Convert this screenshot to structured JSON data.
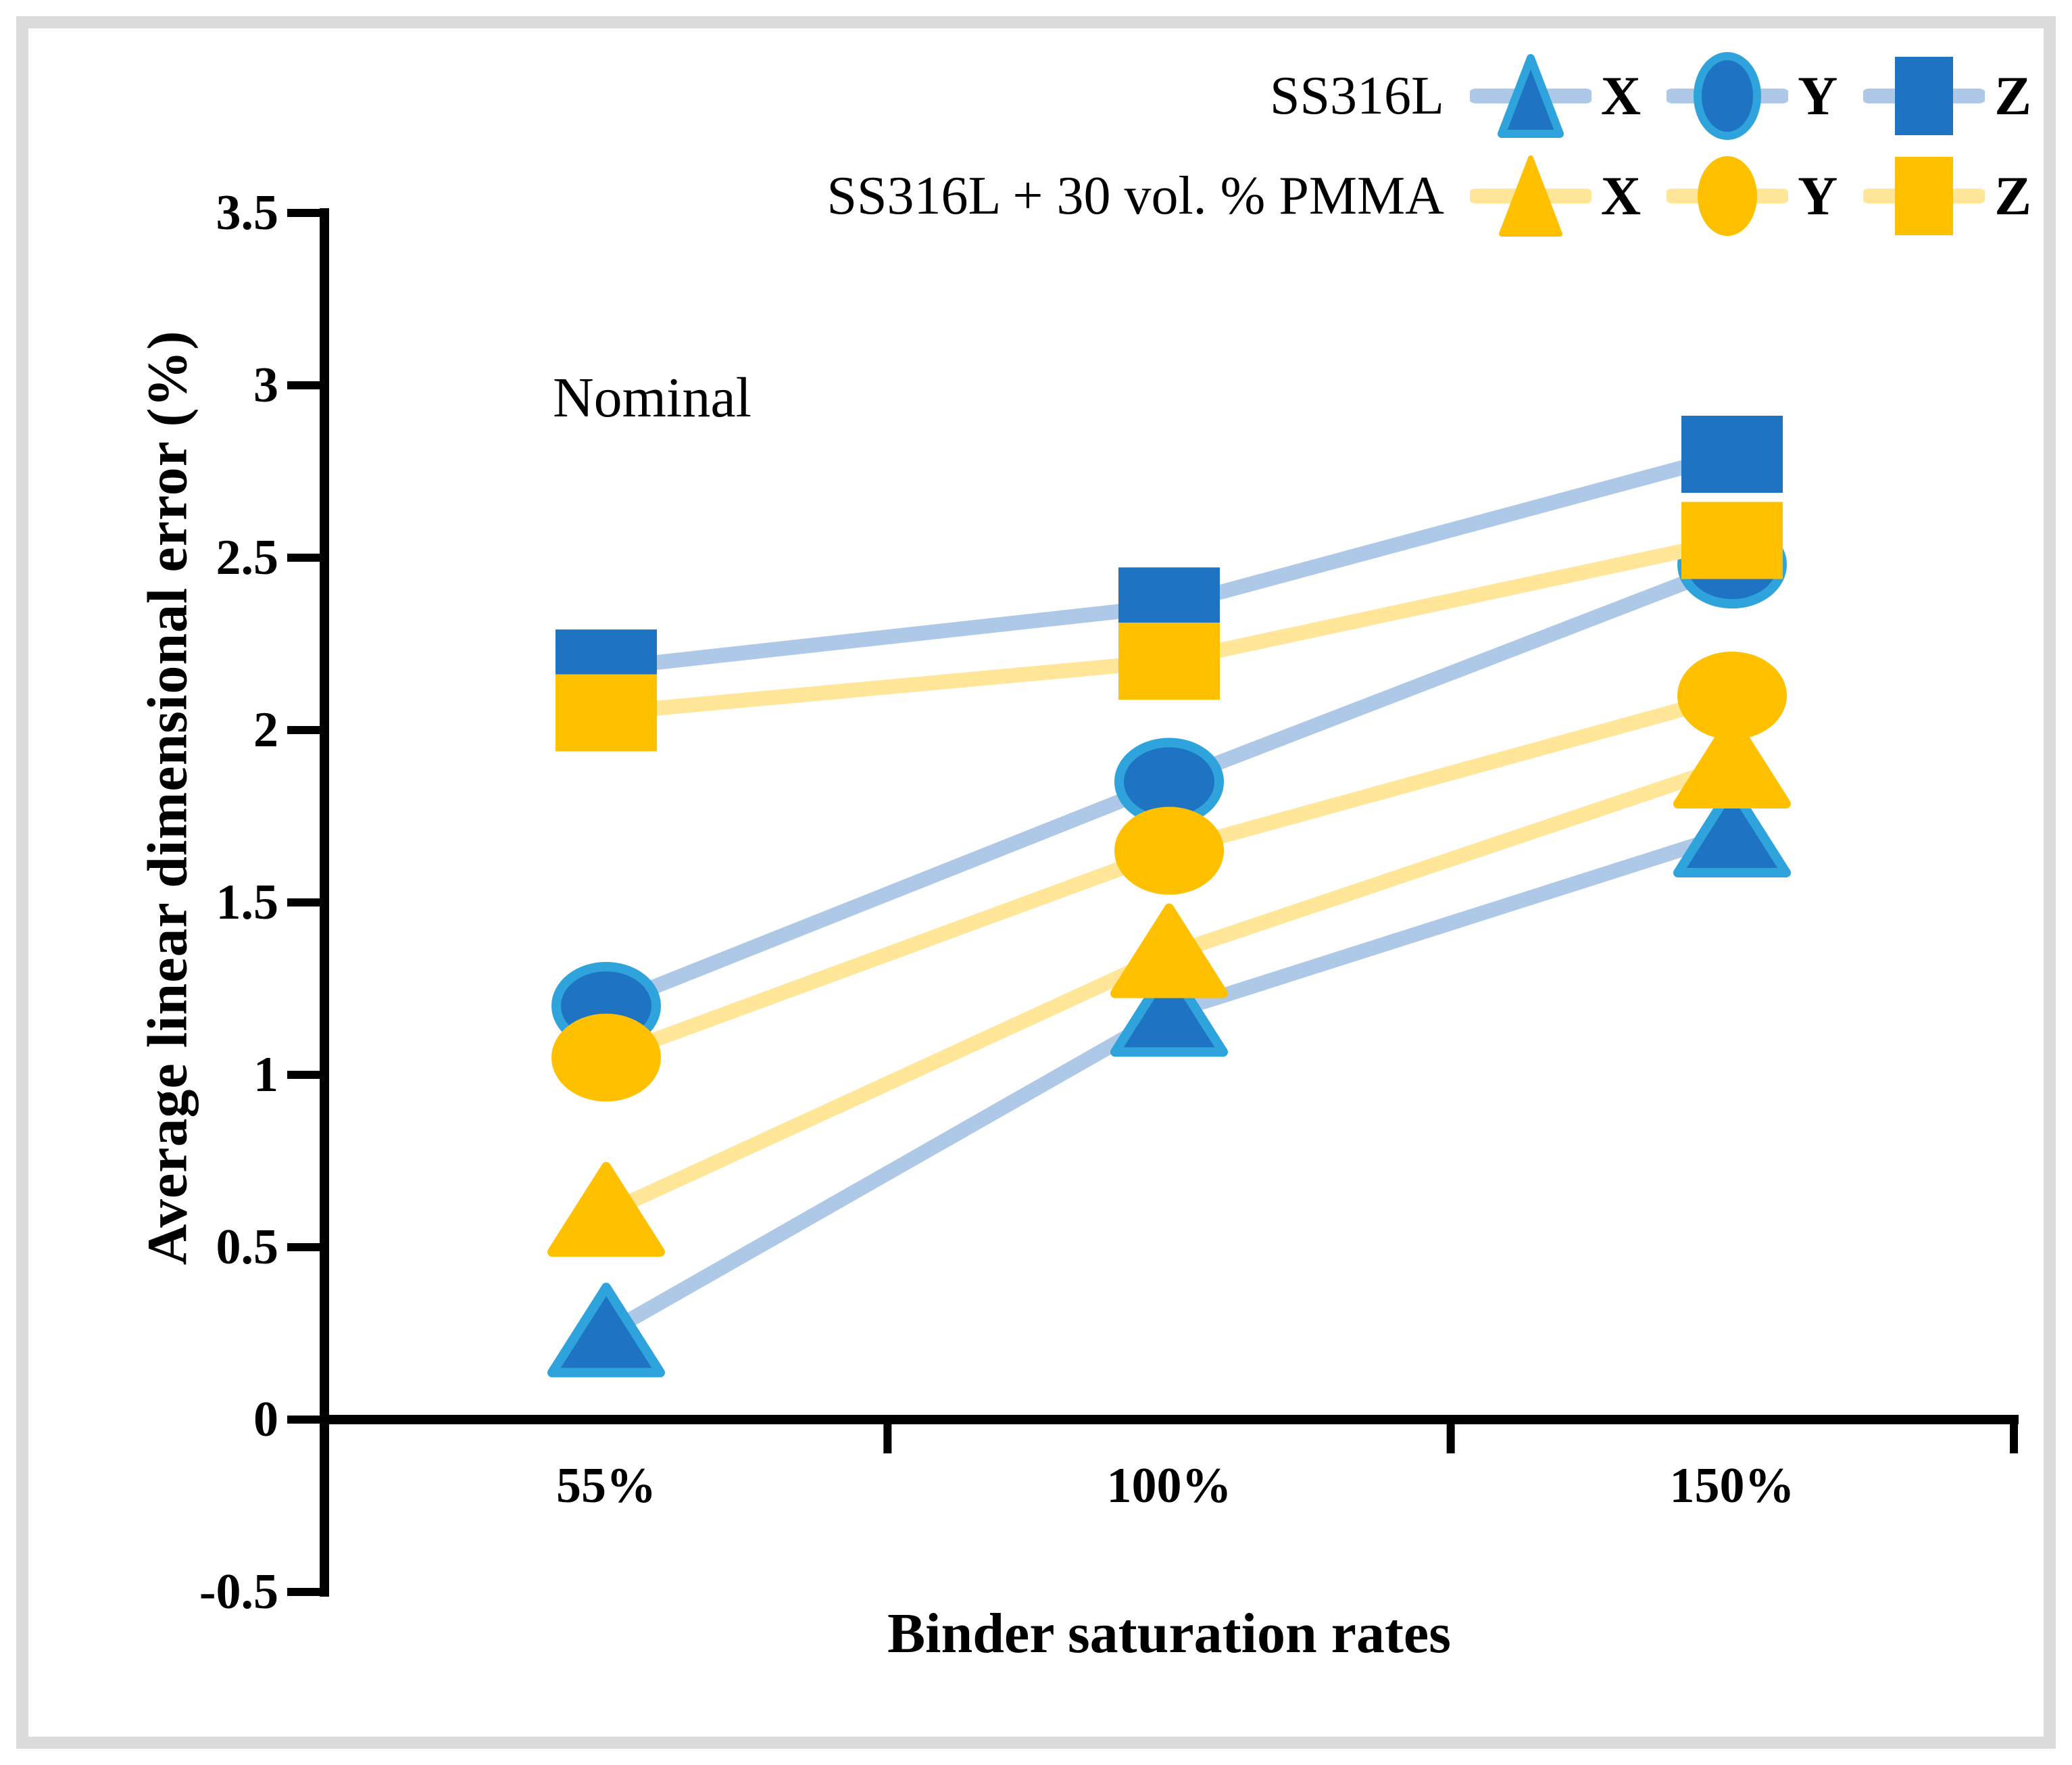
{
  "annotation": "Nominal",
  "legend": {
    "position": "top-right",
    "groups": [
      {
        "label": "SS316L",
        "entries": [
          {
            "axis_label": "X",
            "marker": "triangle"
          },
          {
            "axis_label": "Y",
            "marker": "circle"
          },
          {
            "axis_label": "Z",
            "marker": "square"
          }
        ]
      },
      {
        "label": "SS316L + 30 vol. % PMMA",
        "entries": [
          {
            "axis_label": "X",
            "marker": "triangle"
          },
          {
            "axis_label": "Y",
            "marker": "circle"
          },
          {
            "axis_label": "Z",
            "marker": "square"
          }
        ]
      }
    ]
  },
  "chart_data": {
    "type": "line",
    "title": "",
    "xlabel": "Binder saturation rates",
    "ylabel": "Average linear dimensional error (%)",
    "annotation": "Nominal",
    "categories": [
      "55%",
      "100%",
      "150%"
    ],
    "ylim": [
      -0.5,
      3.5
    ],
    "y_ticks": [
      3.5,
      3,
      2.5,
      2,
      1.5,
      1,
      0.5,
      0,
      -0.5
    ],
    "y_tick_labels": [
      "3.5",
      "3",
      "2.5",
      "2",
      "1.5",
      "1",
      "0.5",
      "0",
      "-0.5"
    ],
    "grid": false,
    "legend_position": "top-right",
    "colors": {
      "ss316l_marker_fill": "#1E73C2",
      "ss316l_marker_border": "#2EA3DC",
      "ss316l_line": "#AEC8E8",
      "pmma_marker_fill": "#FFC000",
      "pmma_marker_border": "#FFC000",
      "pmma_line": "#FFE699",
      "axis": "#000000",
      "frame_border": "#DBDBDB"
    },
    "series": [
      {
        "group": "SS316L",
        "name": "X",
        "marker": "triangle",
        "values": [
          0.25,
          1.18,
          1.7
        ]
      },
      {
        "group": "SS316L",
        "name": "Y",
        "marker": "circle",
        "values": [
          1.2,
          1.85,
          2.48
        ]
      },
      {
        "group": "SS316L",
        "name": "Z",
        "marker": "square",
        "values": [
          2.18,
          2.36,
          2.8
        ]
      },
      {
        "group": "SS316L + 30 vol. % PMMA",
        "name": "X",
        "marker": "triangle",
        "values": [
          0.6,
          1.35,
          1.9
        ]
      },
      {
        "group": "SS316L + 30 vol. % PMMA",
        "name": "Y",
        "marker": "circle",
        "values": [
          1.05,
          1.65,
          2.1
        ]
      },
      {
        "group": "SS316L + 30 vol. % PMMA",
        "name": "Z",
        "marker": "square",
        "values": [
          2.05,
          2.2,
          2.55
        ]
      }
    ]
  }
}
